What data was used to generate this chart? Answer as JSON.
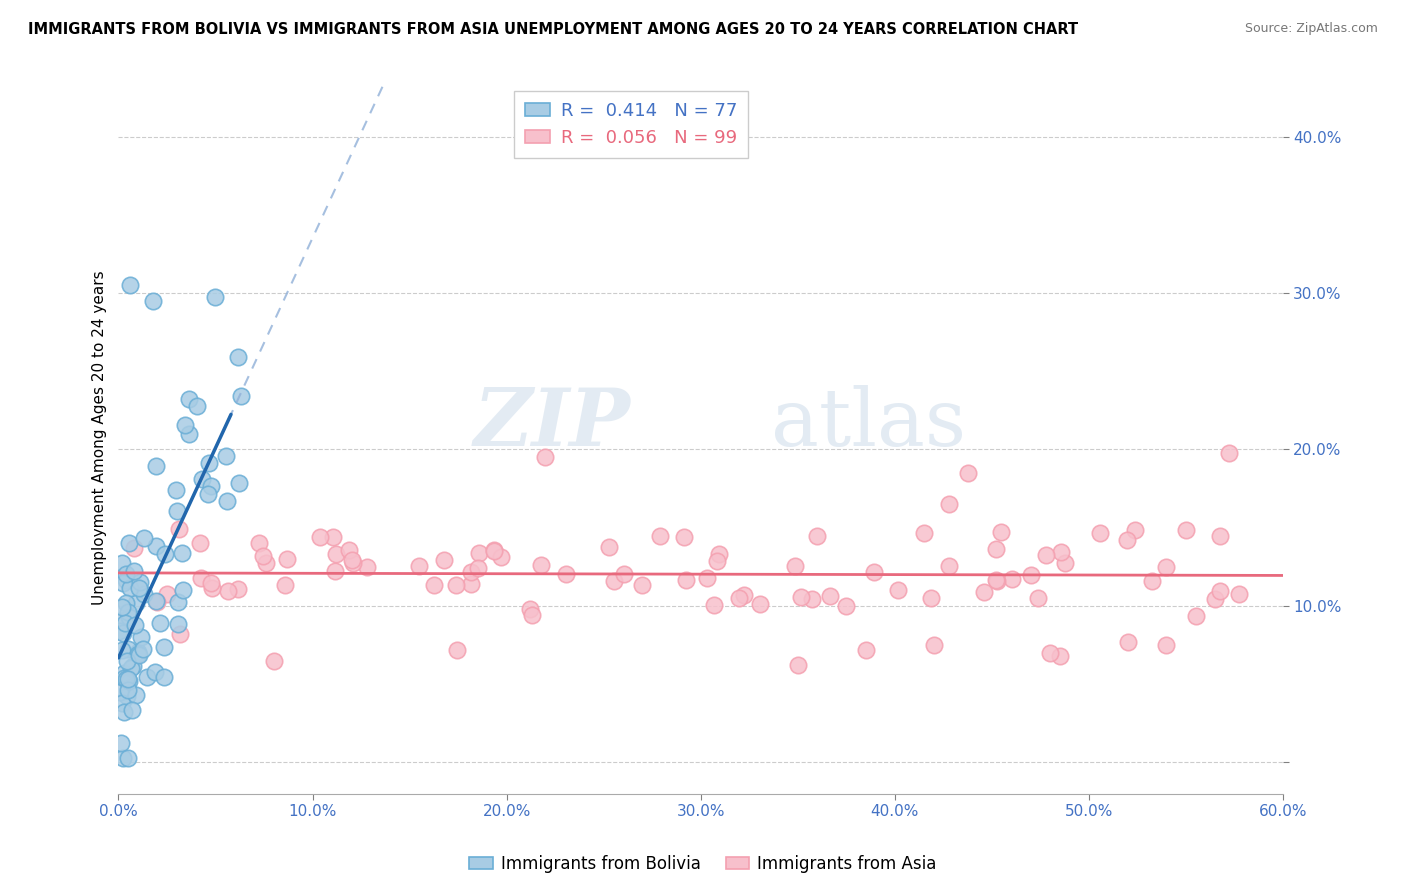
{
  "title": "IMMIGRANTS FROM BOLIVIA VS IMMIGRANTS FROM ASIA UNEMPLOYMENT AMONG AGES 20 TO 24 YEARS CORRELATION CHART",
  "source": "Source: ZipAtlas.com",
  "ylabel": "Unemployment Among Ages 20 to 24 years",
  "bolivia_color": "#a8cce4",
  "bolivia_edge_color": "#6aaed6",
  "asia_color": "#f7c0cc",
  "asia_edge_color": "#f4a0b0",
  "bolivia_line_color": "#2166ac",
  "asia_line_color": "#e8697d",
  "dashed_line_color": "#90b0d8",
  "bolivia_R": 0.414,
  "bolivia_N": 77,
  "asia_R": 0.056,
  "asia_N": 99,
  "xlim": [
    0.0,
    0.6
  ],
  "ylim": [
    -0.02,
    0.435
  ],
  "watermark_zip": "ZIP",
  "watermark_atlas": "atlas",
  "legend_R_label1": "R =  0.414   N = 77",
  "legend_R_label2": "R =  0.056   N = 99",
  "bottom_legend_label1": "Immigrants from Bolivia",
  "bottom_legend_label2": "Immigrants from Asia",
  "ytick_vals": [
    0.0,
    0.1,
    0.2,
    0.3,
    0.4
  ],
  "ytick_labels": [
    "",
    "10.0%",
    "20.0%",
    "30.0%",
    "40.0%"
  ],
  "xtick_vals": [
    0.0,
    0.1,
    0.2,
    0.3,
    0.4,
    0.5,
    0.6
  ],
  "xtick_labels": [
    "0.0%",
    "10.0%",
    "20.0%",
    "30.0%",
    "40.0%",
    "50.0%",
    "60.0%"
  ]
}
